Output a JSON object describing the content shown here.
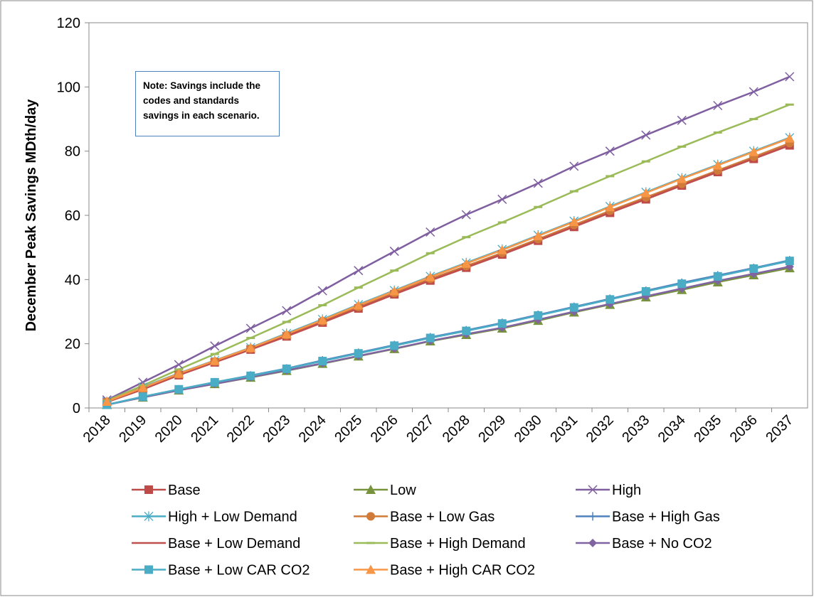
{
  "chart_data": {
    "type": "line",
    "note": "Note: Savings include the codes and standards savings in each scenario.",
    "y_label": "December Peak Savings MDth/day",
    "categories": [
      "2018",
      "2019",
      "2020",
      "2021",
      "2022",
      "2023",
      "2024",
      "2025",
      "2026",
      "2027",
      "2028",
      "2029",
      "2030",
      "2031",
      "2032",
      "2033",
      "2034",
      "2035",
      "2036",
      "2037"
    ],
    "ylim": [
      0,
      120
    ],
    "yticks": [
      0,
      20,
      40,
      60,
      80,
      100,
      120
    ],
    "grid": false,
    "series": [
      {
        "name": "Base",
        "color": "#be4b48",
        "marker": "square",
        "values": [
          1.8,
          5.8,
          10.2,
          14.2,
          18.2,
          22.3,
          26.6,
          31,
          35.4,
          39.7,
          43.7,
          47.8,
          52.1,
          56.4,
          60.8,
          65,
          69.3,
          73.5,
          77.6,
          81.8
        ]
      },
      {
        "name": "Low",
        "color": "#77933c",
        "marker": "triangle",
        "values": [
          1,
          3.3,
          5.5,
          7.5,
          9.5,
          11.6,
          13.8,
          16.1,
          18.4,
          20.8,
          22.8,
          24.8,
          27.2,
          29.8,
          32.2,
          34.5,
          36.8,
          39.2,
          41.4,
          43.6
        ]
      },
      {
        "name": "High",
        "color": "#7f5fa0",
        "marker": "x",
        "values": [
          2.5,
          8,
          13.5,
          19.3,
          24.8,
          30.3,
          36.5,
          42.8,
          48.8,
          54.8,
          60.2,
          65,
          70,
          75.3,
          80,
          85,
          89.6,
          94.2,
          98.5,
          103.2
        ]
      },
      {
        "name": "High + Low Demand",
        "color": "#4bacc6",
        "marker": "asterisk",
        "values": [
          2,
          6.5,
          10.8,
          14.8,
          18.8,
          23.2,
          27.6,
          32.2,
          36.6,
          41,
          45.2,
          49.4,
          53.8,
          58.2,
          62.8,
          67.2,
          71.6,
          75.8,
          80,
          84.2
        ]
      },
      {
        "name": "Base + Low Gas",
        "color": "#d07b39",
        "marker": "circle",
        "values": [
          1.9,
          6,
          10.5,
          14.5,
          18.5,
          22.6,
          27,
          31.4,
          35.8,
          40.2,
          44.2,
          48.3,
          52.6,
          57,
          61.4,
          65.6,
          69.8,
          74,
          78.2,
          82.5
        ]
      },
      {
        "name": "Base + High Gas",
        "color": "#4f81bd",
        "marker": "plus",
        "values": [
          1,
          3.5,
          5.8,
          8,
          10.1,
          12.3,
          14.8,
          17.2,
          19.6,
          22,
          24.2,
          26.5,
          29,
          31.5,
          34,
          36.5,
          39,
          41.3,
          43.6,
          46
        ]
      },
      {
        "name": "Base + Low Demand",
        "color": "#c0504d",
        "marker": "none",
        "values": [
          1.9,
          5.9,
          10.3,
          14.3,
          18.3,
          22.4,
          26.7,
          31.1,
          35.5,
          39.8,
          43.8,
          47.9,
          52.2,
          56.5,
          60.9,
          65.1,
          69.4,
          73.6,
          77.7,
          81.9
        ]
      },
      {
        "name": "Base + High Demand",
        "color": "#9bbb59",
        "marker": "dash",
        "values": [
          2.3,
          7,
          12,
          16.8,
          21.8,
          26.8,
          32,
          37.5,
          42.8,
          48.2,
          53.2,
          57.8,
          62.6,
          67.5,
          72.2,
          76.8,
          81.4,
          85.8,
          90,
          94.5
        ]
      },
      {
        "name": "Base + No CO2",
        "color": "#8064a2",
        "marker": "diamond",
        "values": [
          1,
          3.3,
          5.5,
          7.5,
          9.6,
          11.7,
          13.9,
          16.2,
          18.5,
          20.9,
          23,
          25,
          27.5,
          30,
          32.4,
          34.8,
          37.2,
          39.6,
          41.8,
          44
        ]
      },
      {
        "name": "Base + Low CAR CO2",
        "color": "#4bacc6",
        "marker": "square",
        "values": [
          1,
          3.5,
          5.8,
          8,
          10,
          12.2,
          14.6,
          17,
          19.4,
          21.8,
          24,
          26.3,
          28.8,
          31.3,
          33.8,
          36.3,
          38.7,
          41,
          43.4,
          45.8
        ]
      },
      {
        "name": "Base + High CAR CO2",
        "color": "#f79646",
        "marker": "triangle",
        "values": [
          2,
          6.3,
          10.7,
          14.7,
          18.7,
          23,
          27.4,
          32,
          36.4,
          40.8,
          45,
          49.2,
          53.6,
          58,
          62.6,
          67,
          71.4,
          75.6,
          79.8,
          84
        ]
      }
    ]
  }
}
